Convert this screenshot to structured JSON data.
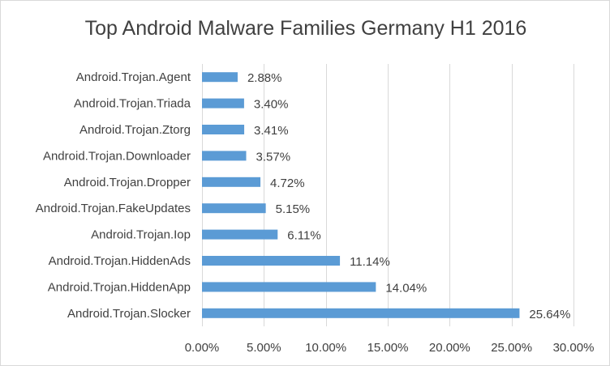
{
  "chart_data": {
    "type": "bar",
    "orientation": "horizontal",
    "title": "Top Android Malware Families Germany H1 2016",
    "xlabel": "",
    "ylabel": "",
    "categories": [
      "Android.Trojan.Agent",
      "Android.Trojan.Triada",
      "Android.Trojan.Ztorg",
      "Android.Trojan.Downloader",
      "Android.Trojan.Dropper",
      "Android.Trojan.FakeUpdates",
      "Android.Trojan.Iop",
      "Android.Trojan.HiddenAds",
      "Android.Trojan.HiddenApp",
      "Android.Trojan.Slocker"
    ],
    "values": [
      2.88,
      3.4,
      3.41,
      3.57,
      4.72,
      5.15,
      6.11,
      11.14,
      14.04,
      25.64
    ],
    "data_labels": [
      "2.88%",
      "3.40%",
      "3.41%",
      "3.57%",
      "4.72%",
      "5.15%",
      "6.11%",
      "11.14%",
      "14.04%",
      "25.64%"
    ],
    "xlim": [
      0,
      30
    ],
    "x_ticks": [
      0,
      5,
      10,
      15,
      20,
      25,
      30
    ],
    "x_tick_labels": [
      "0.00%",
      "5.00%",
      "10.00%",
      "15.00%",
      "20.00%",
      "25.00%",
      "30.00%"
    ],
    "grid": true,
    "legend": "none",
    "bar_color": "#5b9bd5"
  }
}
